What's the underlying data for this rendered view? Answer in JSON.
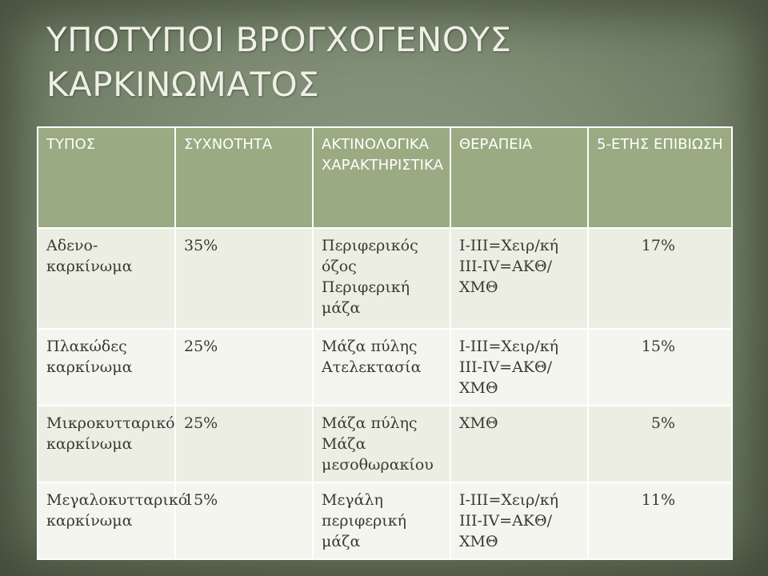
{
  "slide": {
    "title": "ΥΠΟΤΥΠΟΙ ΒΡΟΓΧΟΓΕΝΟΥΣ ΚΑΡΚΙΝΩΜΑΤΟΣ"
  },
  "table": {
    "headers": [
      "ΤΥΠΟΣ",
      "ΣΥΧΝΟΤΗΤΑ",
      "ΑΚΤΙΝΟΛΟΓΙΚΑ ΧΑΡΑΚΤΗΡΙΣΤΙΚΑ",
      "ΘΕΡΑΠΕΙΑ",
      "5-ΕΤΗΣ ΕΠΙΒΙΩΣΗ"
    ],
    "rows": [
      {
        "type": "Αδενο-καρκίνωμα",
        "frequency": "35%",
        "radiology": [
          "Περιφερικός όζος",
          "Περιφερική μάζα"
        ],
        "therapy": [
          "I-III=Χειρ/κή",
          "III-IV=ΑΚΘ/ΧΜΘ"
        ],
        "survival": "17%"
      },
      {
        "type": "Πλακώδες καρκίνωμα",
        "frequency": "25%",
        "radiology": [
          "Μάζα πύλης",
          "Ατελεκτασία"
        ],
        "therapy": [
          "I-III=Χειρ/κή",
          "III-IV=ΑΚΘ/ΧΜΘ"
        ],
        "survival": "15%"
      },
      {
        "type": "Μικροκυτταρικό καρκίνωμα",
        "frequency": "25%",
        "radiology": [
          "Μάζα πύλης",
          "Μάζα μεσοθωρακίου"
        ],
        "therapy": [
          "ΧΜΘ"
        ],
        "survival": "5%"
      },
      {
        "type": "Μεγαλοκυτταρικό καρκίνωμα",
        "frequency": "15%",
        "radiology": [
          "Μεγάλη περιφερική μάζα"
        ],
        "therapy": [
          "I-III=Χειρ/κή",
          "III-IV=ΑΚΘ/ΧΜΘ"
        ],
        "survival": "11%"
      }
    ]
  }
}
